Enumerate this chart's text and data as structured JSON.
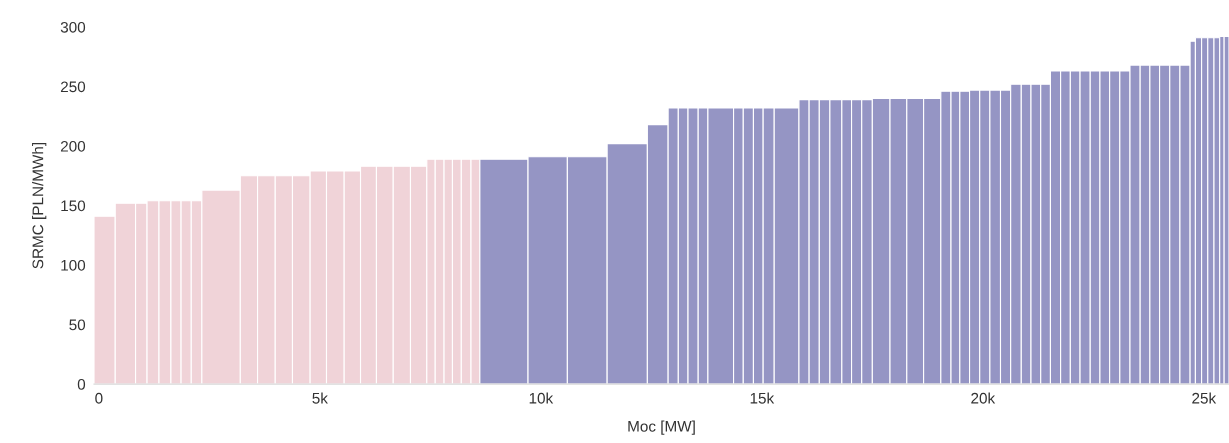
{
  "chart_data": {
    "type": "histogram",
    "xlabel": "Moc [MW]",
    "ylabel": "SRMC [PLN/MWh]",
    "bins": [
      -110,
      370,
      830,
      1090,
      1360,
      1630,
      1860,
      2090,
      2330,
      3200,
      3590,
      3990,
      4380,
      4780,
      5150,
      5550,
      5920,
      6280,
      6660,
      7050,
      7420,
      7610,
      7810,
      8000,
      8200,
      8420,
      8620,
      9710,
      10600,
      11500,
      12410,
      12880,
      13110,
      13330,
      13560,
      13780,
      14360,
      14580,
      14810,
      15030,
      15280,
      15840,
      16070,
      16300,
      16540,
      16810,
      17030,
      17260,
      17500,
      17900,
      18280,
      18660,
      19050,
      19280,
      19480,
      19700,
      19930,
      20160,
      20400,
      20630,
      20870,
      21090,
      21310,
      21530,
      21760,
      21980,
      22200,
      22430,
      22650,
      22870,
      23100,
      23330,
      23560,
      23780,
      24000,
      24230,
      24460,
      24690,
      24810,
      24950,
      25090,
      25230,
      25360,
      25460,
      25570
    ],
    "values": [
      141,
      152,
      152,
      154,
      154,
      154,
      154,
      154,
      163,
      175,
      175,
      175,
      175,
      179,
      179,
      179,
      183,
      183,
      183,
      183,
      189,
      189,
      189,
      189,
      189,
      189,
      189,
      191,
      191,
      202,
      218,
      232,
      232,
      232,
      232,
      232,
      232,
      232,
      232,
      232,
      232,
      239,
      239,
      239,
      239,
      239,
      239,
      239,
      240,
      240,
      240,
      240,
      246,
      246,
      246,
      247,
      247,
      247,
      247,
      252,
      252,
      252,
      252,
      263,
      263,
      263,
      263,
      263,
      263,
      263,
      263,
      268,
      268,
      268,
      268,
      268,
      268,
      288,
      291,
      291,
      291,
      291,
      292,
      292
    ],
    "colors": [
      "#f0d3d8",
      "#f0d3d8",
      "#f0d3d8",
      "#f0d3d8",
      "#f0d3d8",
      "#f0d3d8",
      "#f0d3d8",
      "#f0d3d8",
      "#f0d3d8",
      "#f0d3d8",
      "#f0d3d8",
      "#f0d3d8",
      "#f0d3d8",
      "#f0d3d8",
      "#f0d3d8",
      "#f0d3d8",
      "#f0d3d8",
      "#f0d3d8",
      "#f0d3d8",
      "#f0d3d8",
      "#f0d3d8",
      "#f0d3d8",
      "#f0d3d8",
      "#f0d3d8",
      "#f0d3d8",
      "#f0d3d8",
      "#9595c4",
      "#9595c4",
      "#9595c4",
      "#9595c4",
      "#9595c4",
      "#9595c4",
      "#9595c4",
      "#9595c4",
      "#9595c4",
      "#9595c4",
      "#9595c4",
      "#9595c4",
      "#9595c4",
      "#9595c4",
      "#9595c4",
      "#9595c4",
      "#9595c4",
      "#9595c4",
      "#9595c4",
      "#9595c4",
      "#9595c4",
      "#9595c4",
      "#9595c4",
      "#9595c4",
      "#9595c4",
      "#9595c4",
      "#9595c4",
      "#9595c4",
      "#9595c4",
      "#9595c4",
      "#9595c4",
      "#9595c4",
      "#9595c4",
      "#9595c4",
      "#9595c4",
      "#9595c4",
      "#9595c4",
      "#9595c4",
      "#9595c4",
      "#9595c4",
      "#9595c4",
      "#9595c4",
      "#9595c4",
      "#9595c4",
      "#9595c4",
      "#9595c4",
      "#9595c4",
      "#9595c4",
      "#9595c4",
      "#9595c4",
      "#9595c4",
      "#9595c4",
      "#9595c4",
      "#9595c4",
      "#9595c4",
      "#9595c4",
      "#9595c4",
      "#9595c4"
    ],
    "xlim": [
      -110,
      25570
    ],
    "ylim": [
      0,
      300
    ],
    "xticks": [
      0,
      {
        "value": 5000,
        "label": "5k"
      },
      {
        "value": 10000,
        "label": "10k"
      },
      {
        "value": 15000,
        "label": "15k"
      },
      {
        "value": 20000,
        "label": "20k"
      },
      {
        "value": 25000,
        "label": "25k"
      }
    ],
    "yticks": [
      0,
      50,
      100,
      150,
      200,
      250,
      300
    ],
    "grid": false,
    "legend": false
  }
}
